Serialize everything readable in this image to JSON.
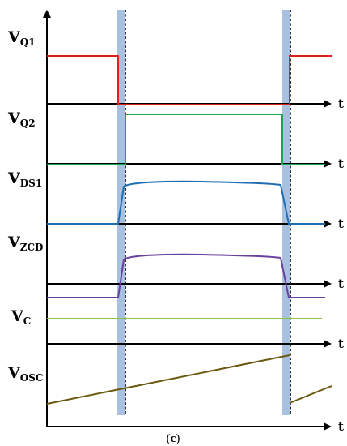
{
  "figure": {
    "caption_open": "(",
    "caption_letter": "c",
    "caption_close": ")",
    "time_axis_label": "t"
  },
  "signals": [
    {
      "key": "vq1",
      "main": "V",
      "sub": "Q1",
      "color": "#e0201c"
    },
    {
      "key": "vq2",
      "main": "V",
      "sub": "Q2",
      "color": "#19a84b"
    },
    {
      "key": "vds1",
      "main": "V",
      "sub": "DS1",
      "color": "#1f6db3"
    },
    {
      "key": "vzcd",
      "main": "V",
      "sub": "ZCD",
      "color": "#6b3fa0"
    },
    {
      "key": "vc",
      "main": "V",
      "sub": "C",
      "color": "#8cc43f"
    },
    {
      "key": "vosc",
      "main": "V",
      "sub": "OSC",
      "color": "#6b5a10"
    }
  ],
  "colors": {
    "axis": "#000000",
    "interval_highlight": "#a9c1e0"
  }
}
